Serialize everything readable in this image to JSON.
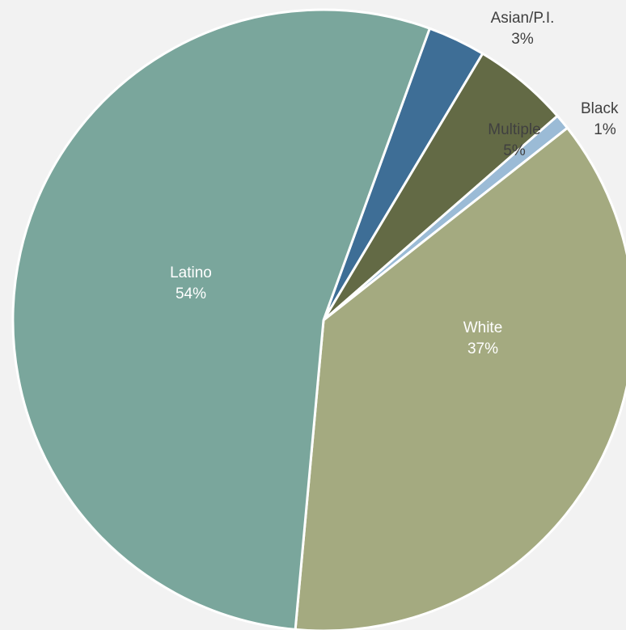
{
  "chart_data": {
    "type": "pie",
    "slices": [
      {
        "label": "Asian/P.I.",
        "value_label": "3%",
        "value": 3,
        "color": "#3e6e96",
        "text_color": "#404040",
        "label_position": "outside"
      },
      {
        "label": "Multiple",
        "value_label": "5%",
        "value": 5,
        "color": "#636a45",
        "text_color": "#404040",
        "label_position": "inside"
      },
      {
        "label": "Black",
        "value_label": "1%",
        "value": 0.8,
        "color": "#9bbbd6",
        "text_color": "#404040",
        "label_position": "outside"
      },
      {
        "label": "White",
        "value_label": "37%",
        "value": 37,
        "color": "#a4aa80",
        "text_color": "#ffffff",
        "label_position": "inside"
      },
      {
        "label": "Latino",
        "value_label": "54%",
        "value": 54,
        "color": "#7aa69c",
        "text_color": "#ffffff",
        "label_position": "inside"
      }
    ],
    "start_angle_deg": 20
  }
}
